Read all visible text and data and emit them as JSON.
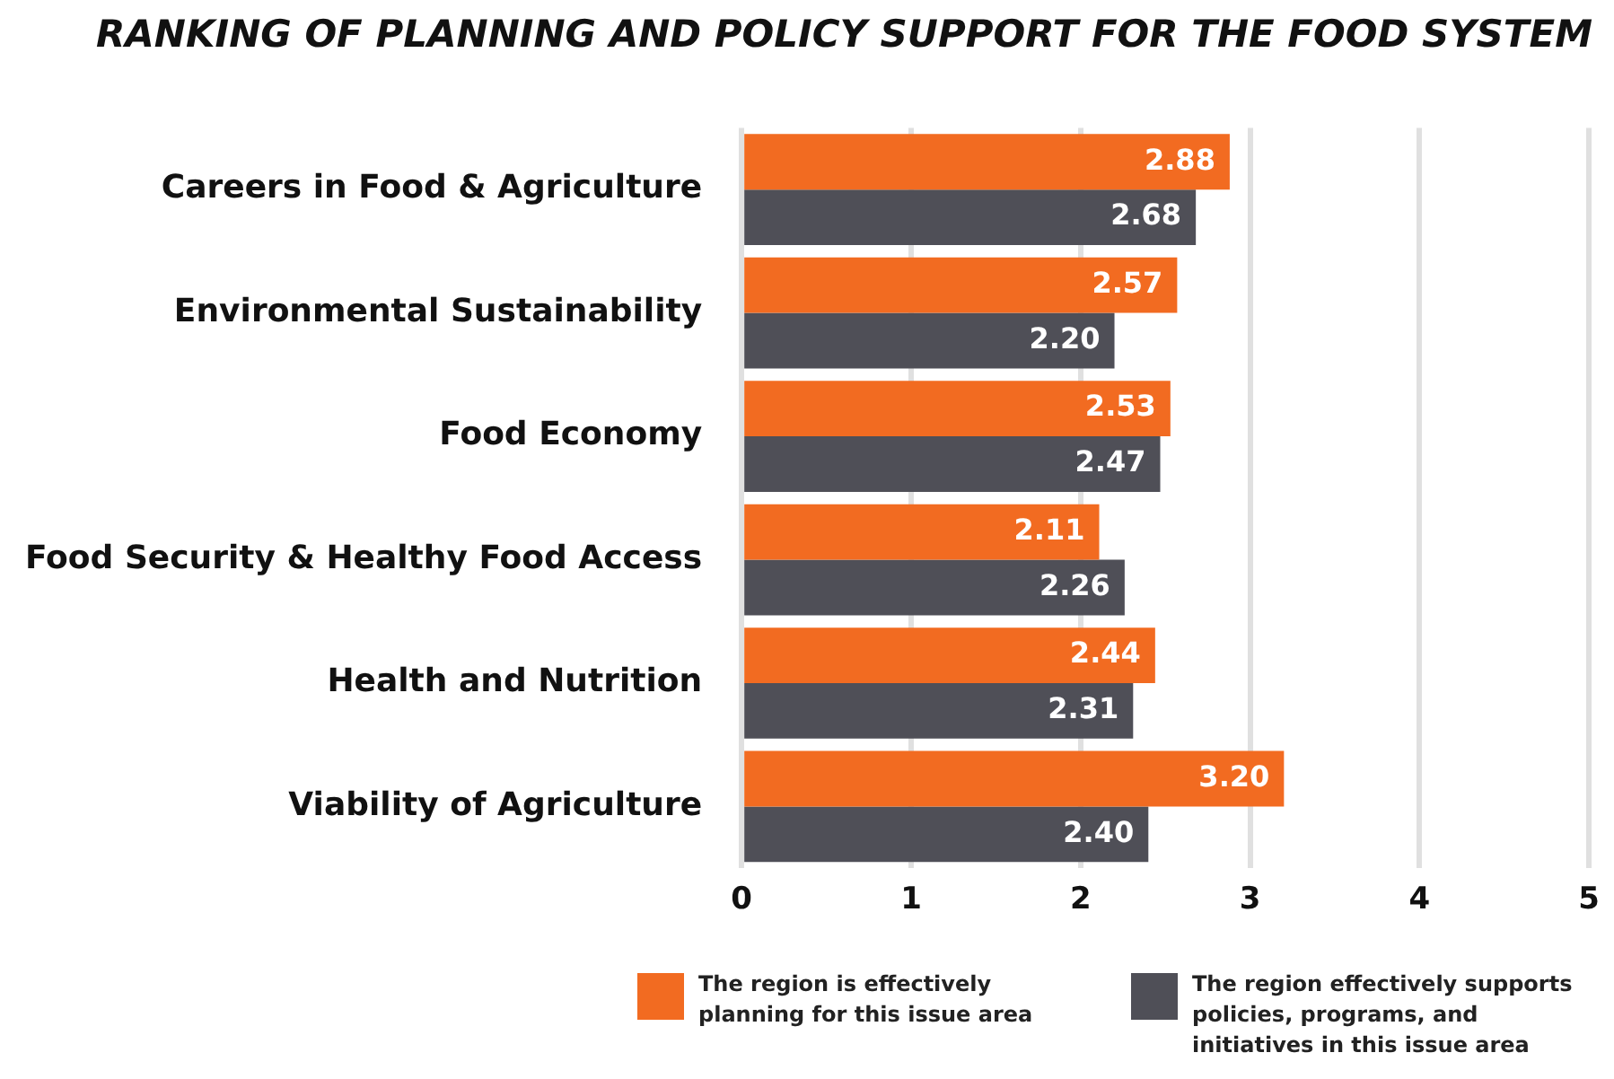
{
  "chart_data": {
    "type": "bar",
    "orientation": "horizontal",
    "title": "RANKING OF PLANNING AND POLICY SUPPORT FOR THE FOOD SYSTEM",
    "categories": [
      "Careers in Food & Agriculture",
      "Environmental Sustainability",
      "Food Economy",
      "Food Security & Healthy Food Access",
      "Health and Nutrition",
      "Viability of Agriculture"
    ],
    "series": [
      {
        "name": "The region is effectively planning for this issue area",
        "color": "#f26b21",
        "values": [
          2.88,
          2.57,
          2.53,
          2.11,
          2.44,
          3.2
        ],
        "value_labels": [
          "2.88",
          "2.57",
          "2.53",
          "2.11",
          "2.44",
          "3.20"
        ]
      },
      {
        "name": "The region effectively supports policies, programs, and initiatives in this issue area",
        "color": "#4f4f57",
        "values": [
          2.68,
          2.2,
          2.47,
          2.26,
          2.31,
          2.4
        ],
        "value_labels": [
          "2.68",
          "2.20",
          "2.47",
          "2.26",
          "2.31",
          "2.40"
        ]
      }
    ],
    "xlim": [
      0,
      5
    ],
    "xticks": [
      0,
      1,
      2,
      3,
      4,
      5
    ],
    "grid": "x",
    "legend": "bottom"
  }
}
